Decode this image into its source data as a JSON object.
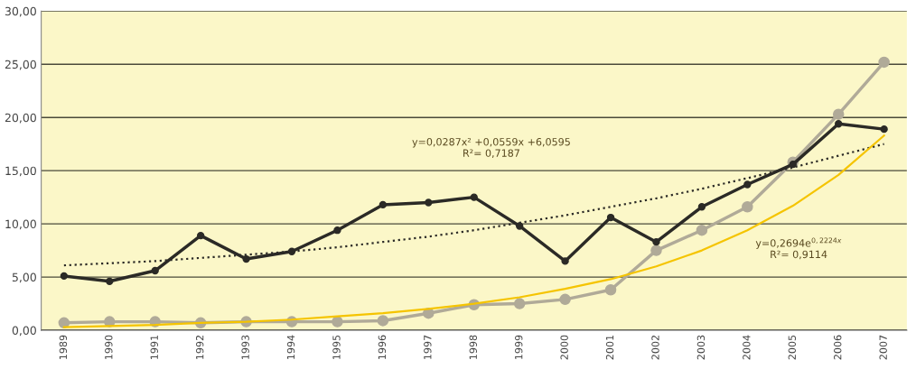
{
  "chart_data": {
    "type": "line",
    "categories": [
      "1989",
      "1990",
      "1991",
      "1992",
      "1993",
      "1994",
      "1995",
      "1996",
      "1997",
      "1998",
      "1999",
      "2000",
      "2001",
      "2002",
      "2003",
      "2004",
      "2005",
      "2006",
      "2007"
    ],
    "series": [
      {
        "color": "#b0aa98",
        "marker": "circle",
        "line_style": "solid",
        "values": [
          0.7,
          0.8,
          0.8,
          0.7,
          0.8,
          0.8,
          0.8,
          0.9,
          1.6,
          2.4,
          2.5,
          2.9,
          3.8,
          7.5,
          9.4,
          11.6,
          15.8,
          20.3,
          25.2
        ]
      },
      {
        "color": "#2b2a26",
        "marker": "circle",
        "line_style": "solid",
        "values": [
          5.1,
          4.6,
          5.6,
          8.9,
          6.7,
          7.4,
          9.4,
          11.8,
          12.0,
          12.5,
          9.8,
          6.5,
          10.6,
          8.3,
          11.6,
          13.7,
          15.6,
          19.4,
          18.9
        ]
      },
      {
        "color": "#2b2a26",
        "marker": "none",
        "line_style": "dotted",
        "values": [
          6.1,
          6.3,
          6.5,
          6.8,
          7.1,
          7.4,
          7.8,
          8.3,
          8.8,
          9.4,
          10.1,
          10.8,
          11.6,
          12.4,
          13.3,
          14.3,
          15.3,
          16.4,
          17.5
        ]
      },
      {
        "color": "#f5c400",
        "marker": "none",
        "line_style": "solid",
        "values": [
          0.3,
          0.4,
          0.5,
          0.7,
          0.8,
          1.0,
          1.3,
          1.6,
          2.0,
          2.5,
          3.1,
          3.9,
          4.8,
          6.0,
          7.5,
          9.4,
          11.7,
          14.6,
          18.3
        ]
      }
    ],
    "ylim": [
      0,
      30
    ],
    "yticks": [
      {
        "value": 0,
        "label": "0,00"
      },
      {
        "value": 5,
        "label": "5,00"
      },
      {
        "value": 10,
        "label": "10,00"
      },
      {
        "value": 15,
        "label": "15,00"
      },
      {
        "value": 20,
        "label": "20,00"
      },
      {
        "value": 25,
        "label": "25,00"
      },
      {
        "value": 30,
        "label": "30,00"
      }
    ],
    "grid": "y",
    "legend": false,
    "annotations": [
      "y=0,0287x² +0,0559x +6,0595\nR²= 0,7187",
      "y=0,2694e$^{0,2224x}$\nR²= 0,9114"
    ]
  }
}
